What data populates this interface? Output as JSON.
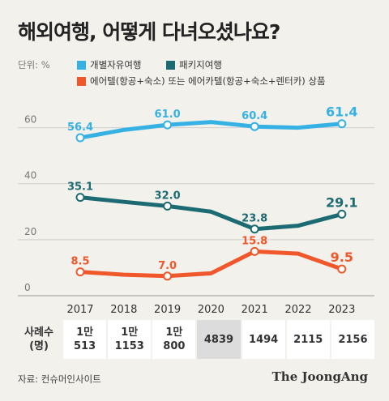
{
  "title": "해외여행, 어떻게 다녀오셨나요?",
  "unit": "단위: %",
  "legend": [
    {
      "label": "개별자유여행",
      "color": "#36b1e4"
    },
    {
      "label": "패키지여행",
      "color": "#1c6b73"
    },
    {
      "label": "에어텔(항공+숙소) 또는 에어카텔(항공+숙소+렌터카) 상품",
      "color": "#f0572a"
    }
  ],
  "chart_data": {
    "type": "line",
    "categories": [
      "2017",
      "2018",
      "2019",
      "2020",
      "2021",
      "2022",
      "2023"
    ],
    "ylim": [
      0,
      70
    ],
    "yticks": [
      0,
      20,
      40,
      60
    ],
    "grid": true,
    "series": [
      {
        "name": "개별자유여행",
        "color": "#36b1e4",
        "values": [
          56.4,
          59.2,
          61.0,
          62.0,
          60.4,
          60.0,
          61.4
        ],
        "labels": [
          "56.4",
          null,
          "61.0",
          null,
          "60.4",
          null,
          "61.4"
        ]
      },
      {
        "name": "패키지여행",
        "color": "#1c6b73",
        "values": [
          35.1,
          33.5,
          32.0,
          30.0,
          23.8,
          25.0,
          29.1
        ],
        "labels": [
          "35.1",
          null,
          "32.0",
          null,
          "23.8",
          null,
          "29.1"
        ]
      },
      {
        "name": "에어텔(항공+숙소) 또는 에어카텔(항공+숙소+렌터카) 상품",
        "color": "#f0572a",
        "values": [
          8.5,
          7.5,
          7.0,
          8.0,
          15.8,
          15.0,
          9.5
        ],
        "labels": [
          "8.5",
          null,
          "7.0",
          null,
          "15.8",
          null,
          "9.5"
        ]
      }
    ]
  },
  "table": {
    "header": [
      "사례수",
      "(명)"
    ],
    "cells": [
      [
        "1만",
        "513"
      ],
      [
        "1만",
        "1153"
      ],
      [
        "1만",
        "800"
      ],
      [
        "4839"
      ],
      [
        "1494"
      ],
      [
        "2115"
      ],
      [
        "2156"
      ]
    ]
  },
  "source": "자료: 컨슈머인사이트",
  "brand": "The JoongAng"
}
